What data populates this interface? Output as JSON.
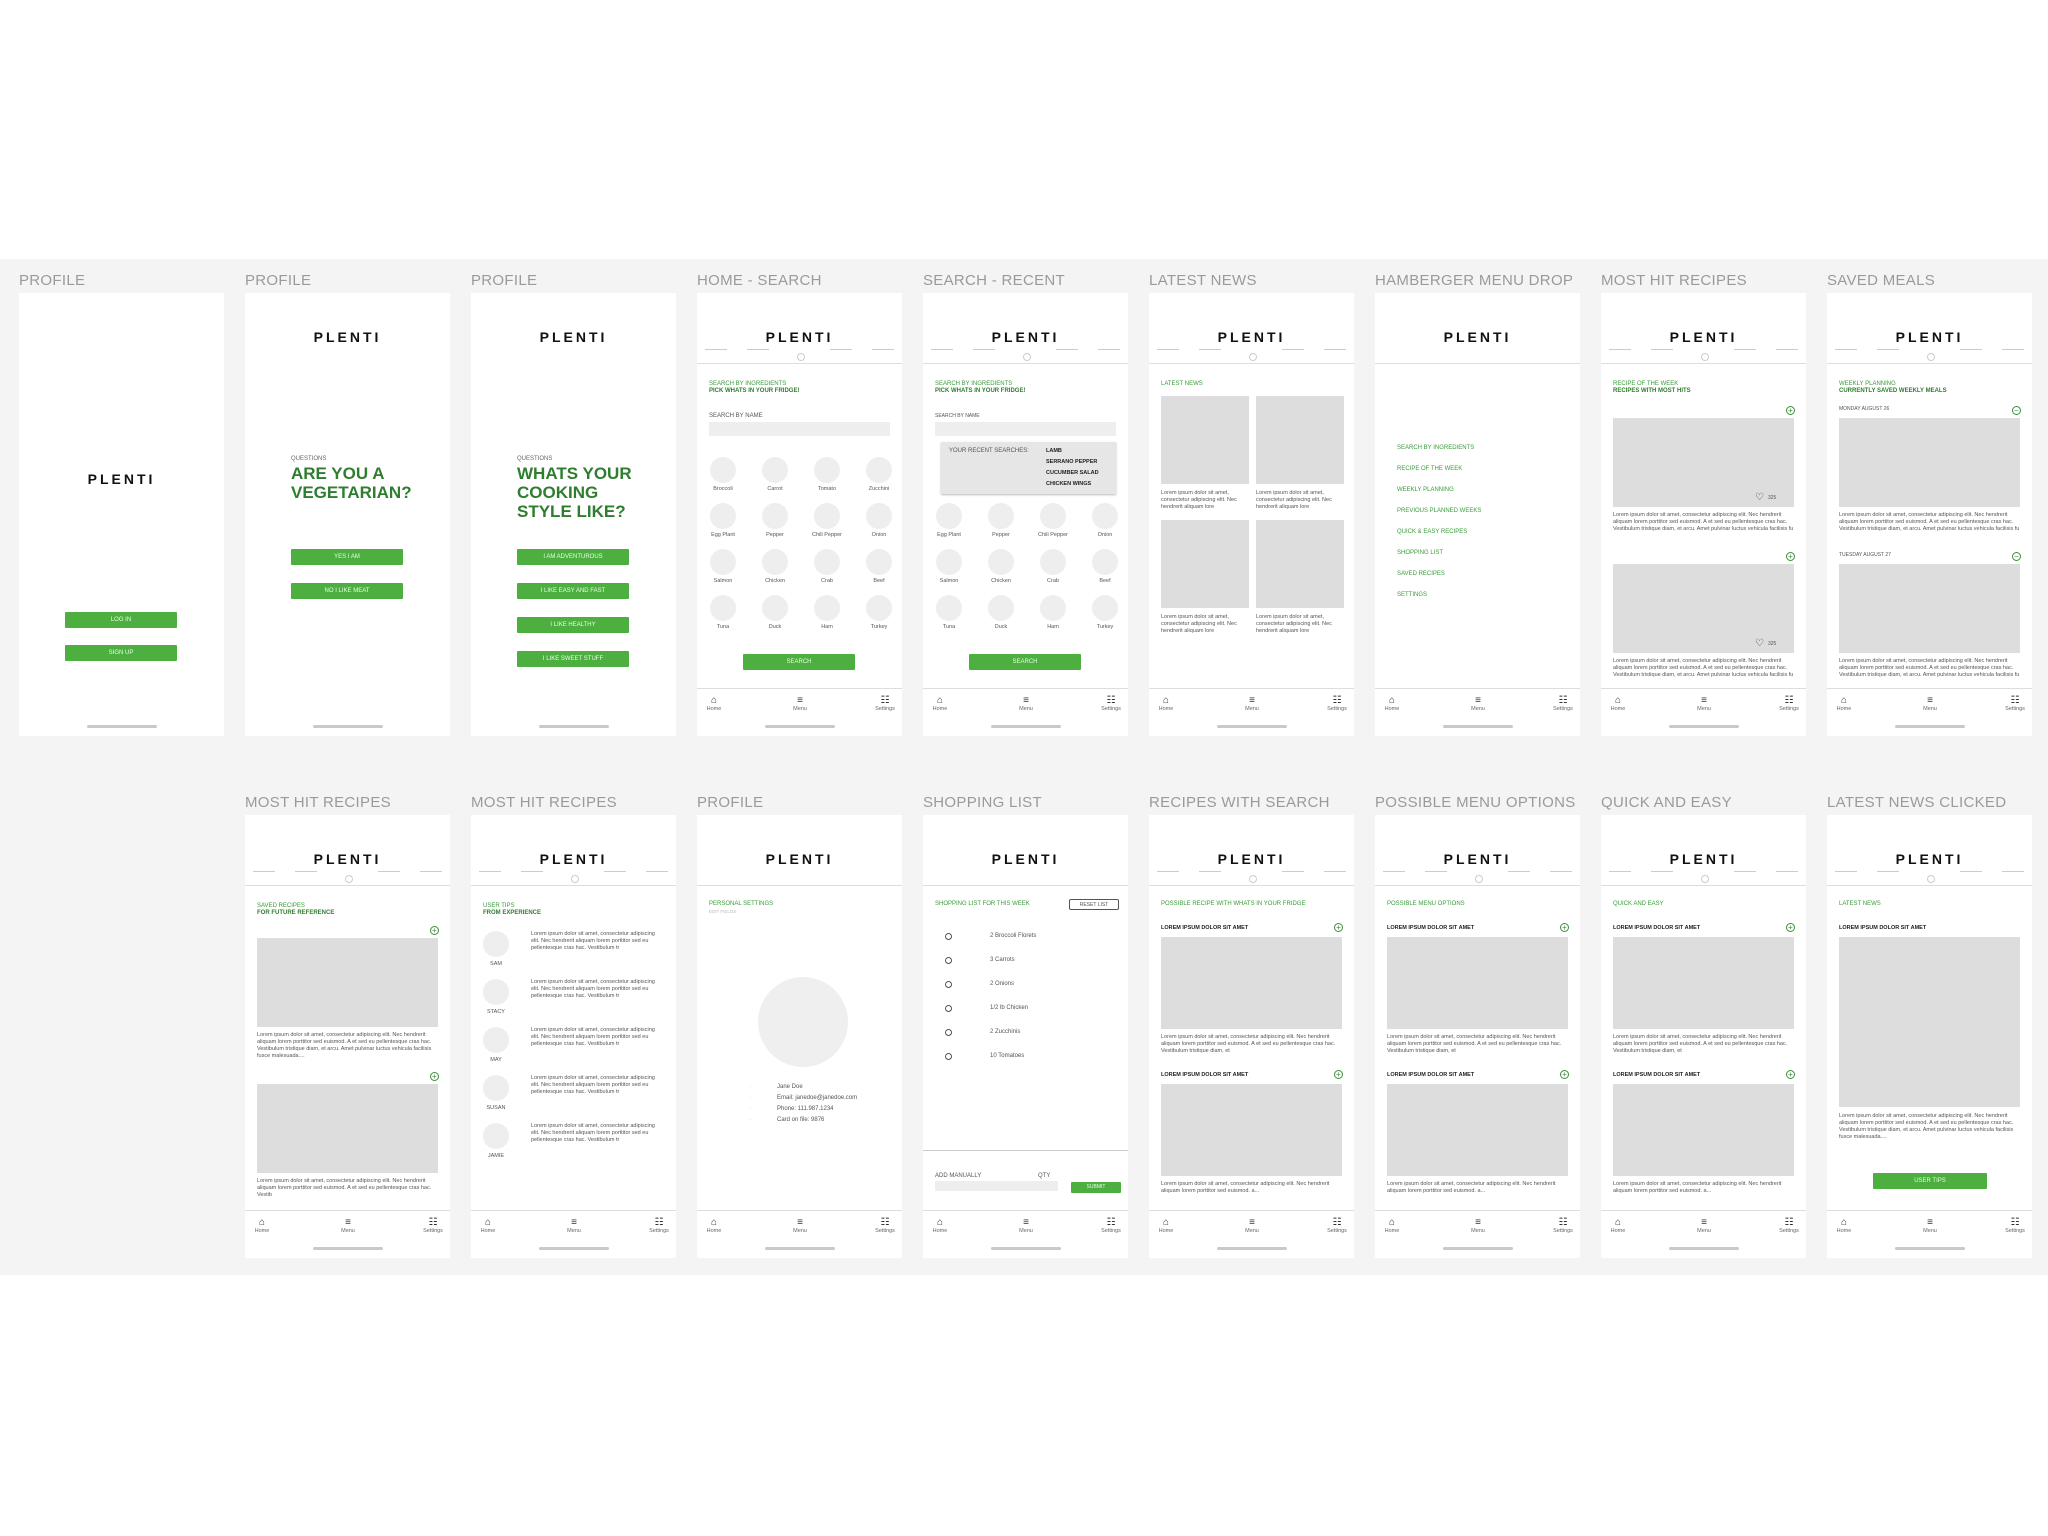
{
  "brand": "PLENTI",
  "labels": [
    "PROFILE",
    "PROFILE",
    "PROFILE",
    "HOME - SEARCH",
    "SEARCH - RECENT",
    "LATEST NEWS",
    "HAMBERGER MENU DROP",
    "MOST HIT RECIPES",
    "SAVED MEALS",
    "MOST HIT RECIPES",
    "MOST HIT RECIPES",
    "PROFILE",
    "SHOPPING LIST",
    "RECIPES WITH SEARCH",
    "POSSIBLE MENU OPTIONS",
    "QUICK AND EASY",
    "LATEST NEWS CLICKED"
  ],
  "nav": {
    "home": "Home",
    "menu": "Menu",
    "settings": "Settings"
  },
  "login": {
    "login": "Log In",
    "signup": "Sign up"
  },
  "veg": {
    "q": "QUESTIONS",
    "title": "ARE YOU A VEGETARIAN?",
    "yes": "YES I AM",
    "no": "NO I LIKE MEAT"
  },
  "style": {
    "q": "QUESTIONS",
    "title": "WHATS YOUR COOKING STYLE LIKE?",
    "o1": "I AM ADVENTUROUS",
    "o2": "I LIKE EASY AND FAST",
    "o3": "I LIKE HEALTHY",
    "o4": "I LIKE SWEET STUFF"
  },
  "search": {
    "t1": "SEARCH BY INGREDIENTS",
    "t2": "PICK WHATS IN YOUR FRIDGE!",
    "byname": "SEARCH BY NAME",
    "button": "SEARCH",
    "ingredients": [
      "Broccoli",
      "Carrot",
      "Tomato",
      "Zucchini",
      "Egg Plant",
      "Pepper",
      "Chili Pepper",
      "Onion",
      "Salmon",
      "Chicken",
      "Crab",
      "Beef",
      "Tuna",
      "Duck",
      "Ham",
      "Turkey"
    ]
  },
  "recent": {
    "byname": "SEARCH BY NAME",
    "title": "YOUR RECENT SEARCHES:",
    "items": [
      "LAMB",
      "SERRANO PEPPER",
      "CUCUMBER SALAD",
      "CHICKEN WINGS"
    ]
  },
  "news": {
    "title": "LATEST NEWS",
    "lorem": "Lorem ipsum dolor sit amet, consectetur adipiscing elit. Nec hendrerit aliquam lore"
  },
  "menu": {
    "items": [
      "SEARCH BY INGREDIENTS",
      "RECIPE OF THE WEEK",
      "WEEKLY PLANNING",
      "PREVIOUS PLANNED WEEKS",
      "QUICK & EASY RECIPES",
      "SHOPPING LIST",
      "SAVED RECIPES",
      "SETTINGS"
    ]
  },
  "mosthit": {
    "t1": "RECIPE OF THE WEEK",
    "t2": "RECIPES WITH MOST HITS",
    "count": "325",
    "lorem": "Lorem ipsum dolor sit amet, consectetur adipiscing elit. Nec hendrerit aliquam lorem porttitor sed euismod. A et sed eu pellentesque cras hac. Vestibulum tristique diam, et arcu. Amet pulvinar luctus vehicula facilisis fu"
  },
  "saved": {
    "t1": "WEEKLY PLANNING",
    "t2": "CURRENTLY SAVED WEEKLY MEALS",
    "d1": "MONDAY AUGUST 26",
    "d2": "TUESDAY AUGUST 27",
    "lorem": "Lorem ipsum dolor sit amet, consectetur adipiscing elit. Nec hendrerit aliquam lorem porttitor sed euismod. A et sed eu pellentesque cras hac. Vestibulum tristique diam, et arcu. Amet pulvinar luctus vehicula facilisis fu"
  },
  "savedrec": {
    "t1": "SAVED RECIPES",
    "t2": "FOR FUTURE REFERENCE",
    "lorem": "Lorem ipsum dolor sit amet, consectetur adipiscing elit. Nec hendrerit aliquam lorem porttitor sed euismod. A et sed eu pellentesque cras hac. Vestibulum tristique diam, et arcu. Amet pulvinar luctus vehicula facilisis fusce malesuada....",
    "lorem2": "Lorem ipsum dolor sit amet, consectetur adipiscing elit. Nec hendrerit aliquam lorem porttitor sed euismod. A et sed eu pellentesque cras hac. Vestib"
  },
  "tips": {
    "t1": "USER TIPS",
    "t2": "FROM EXPERIENCE",
    "users": [
      "SAM",
      "STACY",
      "MAY",
      "SUSAN",
      "JAMIE"
    ],
    "lorem": "Lorem ipsum dolor sit amet, consectetur adipiscing elit. Nec hendrerit aliquam lorem porttitor sed eu pellentesque cras hac. Vestibulum tr"
  },
  "profile": {
    "title": "PERSONAL SETTINGS",
    "sub": "EDIT FIELDS",
    "name": "Jane Doe",
    "email": "Email: janedoe@janedoe.com",
    "phone": "Phone: 111.987.1234",
    "card": "Card on file: 9876"
  },
  "shopping": {
    "title": "SHOPPING LIST FOR THIS WEEK",
    "reset": "RESET LIST",
    "items": [
      "2 Broccoli Florets",
      "3 Carrots",
      "2 Onions",
      "1/2 lb Chicken",
      "2 Zucchinis",
      "10 Tomatoes"
    ],
    "add": "ADD MANUALLY",
    "qty": "QTY",
    "submit": "SUBMIT"
  },
  "rws": {
    "title": "POSSIBLE RECIPE WITH WHATS IN YOUR FRIDGE",
    "h": "LOREM IPSUM DOLOR SIT AMET",
    "lorem": "Lorem ipsum dolor sit amet, consectetur adipiscing elit. Nec hendrerit aliquam lorem porttitor sed euismod. A et sed eu pellentesque cras hac. Vestibulum tristique diam, et",
    "lorem2": "Lorem ipsum dolor sit amet, consectetur adipiscing elit. Nec hendrerit aliquam lorem porttitor sed euismod. A et sed eu pellentesque cras hac. Vestibulum tristique diam, et",
    "lorem3": "Lorem ipsum dolor sit amet, consectetur adipiscing elit. Nec hendrerit aliquam lorem porttitor sed euismod. a..."
  },
  "pmo": {
    "title": "POSSIBLE MENU OPTIONS",
    "h": "LOREM IPSUM DOLOR SIT AMET",
    "lorem": "Lorem ipsum dolor sit amet, consectetur adipiscing elit. Nec hendrerit aliquam lorem porttitor sed euismod. A et sed eu pellentesque cras hac. Vestibulum tristique diam, et",
    "lorem3": "Lorem ipsum dolor sit amet, consectetur adipiscing elit. Nec hendrerit aliquam lorem porttitor sed euismod. a..."
  },
  "qe": {
    "title": "QUICK AND EASY",
    "h": "LOREM IPSUM DOLOR SIT AMET",
    "lorem": "Lorem ipsum dolor sit amet, consectetur adipiscing elit. Nec hendrerit aliquam lorem porttitor sed euismod. A et sed eu pellentesque cras hac. Vestibulum tristique diam, et",
    "lorem3": "Lorem ipsum dolor sit amet, consectetur adipiscing elit. Nec hendrerit aliquam lorem porttitor sed euismod. a..."
  },
  "lnc": {
    "title": "LATEST NEWS",
    "h": "LOREM IPSUM DOLOR SIT AMET",
    "lorem": "Lorem ipsum dolor sit amet, consectetur adipiscing elit. Nec hendrerit aliquam lorem porttitor sed euismod. A et sed eu pellentesque cras hac. Vestibulum tristique diam, et arcu. Amet pulvinar luctus vehicula facilisis fusce malesuada....",
    "btn": "USER TIPS"
  },
  "colors": {
    "accent": "#4caf3f",
    "accent_dark": "#2f7d2f"
  }
}
